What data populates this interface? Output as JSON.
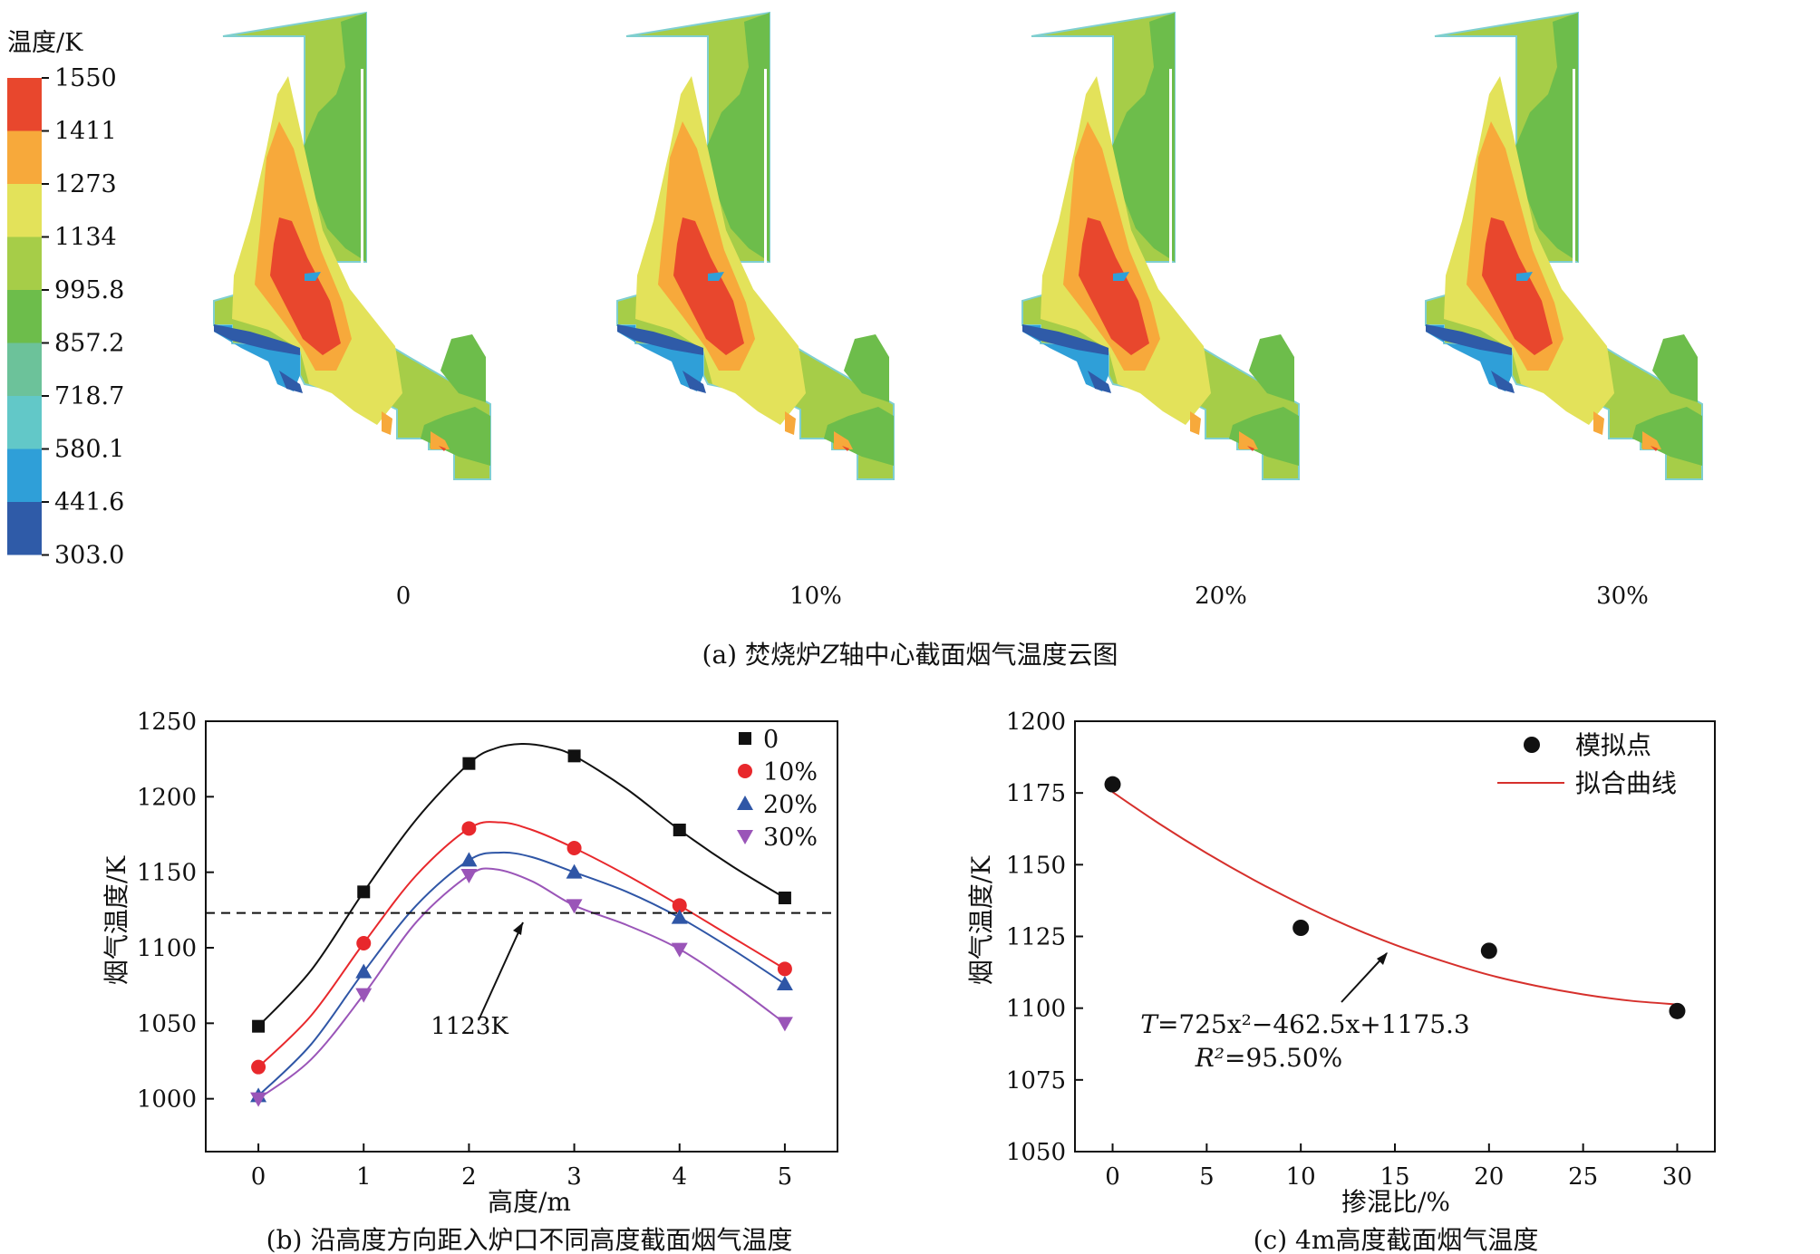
{
  "panel_a": {
    "caption_prefix": "(a) 焚烧炉",
    "caption_axis": "Z",
    "caption_suffix": "轴中心截面烟气温度云图",
    "legend_title": "温度/K",
    "legend_levels": [
      "1550",
      "1411",
      "1273",
      "1134",
      "995.8",
      "857.2",
      "718.7",
      "580.1",
      "441.6",
      "303.0"
    ],
    "legend_colors": [
      "#e8472d",
      "#f7a93b",
      "#e3e25a",
      "#a6cd48",
      "#6dbd4b",
      "#6cc29a",
      "#62c8c8",
      "#2f9fd8",
      "#2f5ba8"
    ],
    "case_labels": [
      "0",
      "10%",
      "20%",
      "30%"
    ],
    "colors": {
      "hot": "#e8472d",
      "warm": "#f7a93b",
      "mild": "#e3e25a",
      "base": "#a6cd48",
      "cool": "#6dbd4b",
      "cold": "#2f9fd8",
      "coldest": "#2f5ba8"
    }
  },
  "chart_data": [
    {
      "type": "line",
      "caption": "(b) 沿高度方向距入炉口不同高度截面烟气温度",
      "xlabel": "高度/m",
      "ylabel": "烟气温度/K",
      "xlim": [
        -0.5,
        5.5
      ],
      "ylim": [
        965,
        1250
      ],
      "xticks": [
        0,
        1,
        2,
        3,
        4,
        5
      ],
      "yticks": [
        1000,
        1050,
        1100,
        1150,
        1200,
        1250
      ],
      "x": [
        0,
        1,
        2,
        3,
        4,
        5
      ],
      "series": [
        {
          "name": "0",
          "values": [
            1048,
            1137,
            1222,
            1227,
            1178,
            1133
          ],
          "color": "#111111",
          "marker": "square",
          "curve": [
            [
              0,
              1048
            ],
            [
              0.5,
              1085
            ],
            [
              1,
              1137
            ],
            [
              1.5,
              1185
            ],
            [
              2,
              1222
            ],
            [
              2.25,
              1232
            ],
            [
              2.5,
              1235
            ],
            [
              2.75,
              1233
            ],
            [
              3,
              1227
            ],
            [
              3.5,
              1205
            ],
            [
              4,
              1178
            ],
            [
              4.5,
              1154
            ],
            [
              5,
              1133
            ]
          ]
        },
        {
          "name": "10%",
          "values": [
            1021,
            1103,
            1179,
            1166,
            1128,
            1086
          ],
          "color": "#e8282c",
          "marker": "circle",
          "curve": [
            [
              0,
              1021
            ],
            [
              0.5,
              1055
            ],
            [
              1,
              1103
            ],
            [
              1.5,
              1148
            ],
            [
              2,
              1179
            ],
            [
              2.3,
              1183
            ],
            [
              2.6,
              1178
            ],
            [
              3,
              1166
            ],
            [
              3.5,
              1148
            ],
            [
              4,
              1128
            ],
            [
              4.5,
              1107
            ],
            [
              5,
              1086
            ]
          ]
        },
        {
          "name": "20%",
          "values": [
            1002,
            1084,
            1158,
            1150,
            1120,
            1076
          ],
          "color": "#2f56a6",
          "marker": "triangle-up",
          "curve": [
            [
              0,
              1002
            ],
            [
              0.5,
              1036
            ],
            [
              1,
              1084
            ],
            [
              1.5,
              1128
            ],
            [
              2,
              1158
            ],
            [
              2.3,
              1163
            ],
            [
              2.6,
              1160
            ],
            [
              3,
              1150
            ],
            [
              3.5,
              1137
            ],
            [
              4,
              1120
            ],
            [
              4.5,
              1099
            ],
            [
              5,
              1076
            ]
          ]
        },
        {
          "name": "30%",
          "values": [
            1000,
            1069,
            1148,
            1128,
            1099,
            1050
          ],
          "color": "#9a55b8",
          "marker": "triangle-down",
          "curve": [
            [
              0,
              1000
            ],
            [
              0.5,
              1026
            ],
            [
              1,
              1069
            ],
            [
              1.5,
              1117
            ],
            [
              2,
              1148
            ],
            [
              2.25,
              1152
            ],
            [
              2.6,
              1144
            ],
            [
              3,
              1128
            ],
            [
              3.5,
              1115
            ],
            [
              4,
              1099
            ],
            [
              4.5,
              1076
            ],
            [
              5,
              1050
            ]
          ]
        }
      ],
      "reference": {
        "y": 1123,
        "label": "1123K",
        "style": "dashed"
      },
      "legend_position": "top-right",
      "grid": false
    },
    {
      "type": "scatter",
      "caption": "(c) 4m高度截面烟气温度",
      "xlabel": "掺混比/%",
      "ylabel": "烟气温度/K",
      "xlim": [
        -2,
        32
      ],
      "ylim": [
        1050,
        1200
      ],
      "xticks": [
        0,
        5,
        10,
        15,
        20,
        25,
        30
      ],
      "yticks": [
        1050,
        1075,
        1100,
        1125,
        1150,
        1175,
        1200
      ],
      "points": {
        "name": "模拟点",
        "x": [
          0,
          10,
          20,
          30
        ],
        "y": [
          1178,
          1128,
          1120,
          1099
        ],
        "color": "#111111"
      },
      "fit": {
        "name": "拟合曲线",
        "color": "#d6302c",
        "coefficients": [
          725,
          -462.5,
          1175.3
        ],
        "x": [
          0,
          2.5,
          5,
          7.5,
          10,
          12.5,
          15,
          17.5,
          20,
          22.5,
          25,
          27.5,
          30
        ],
        "y": [
          1175.3,
          1164.2,
          1154.0,
          1144.7,
          1136.3,
          1128.7,
          1122.1,
          1116.5,
          1111.6,
          1107.8,
          1104.8,
          1102.6,
          1101.3
        ]
      },
      "equation": {
        "lhs": "T",
        "text": "=725x²−462.5x+1175.3",
        "r2_label": "R²",
        "r2_value": "=95.50%"
      },
      "legend_position": "top-right",
      "grid": false
    }
  ]
}
